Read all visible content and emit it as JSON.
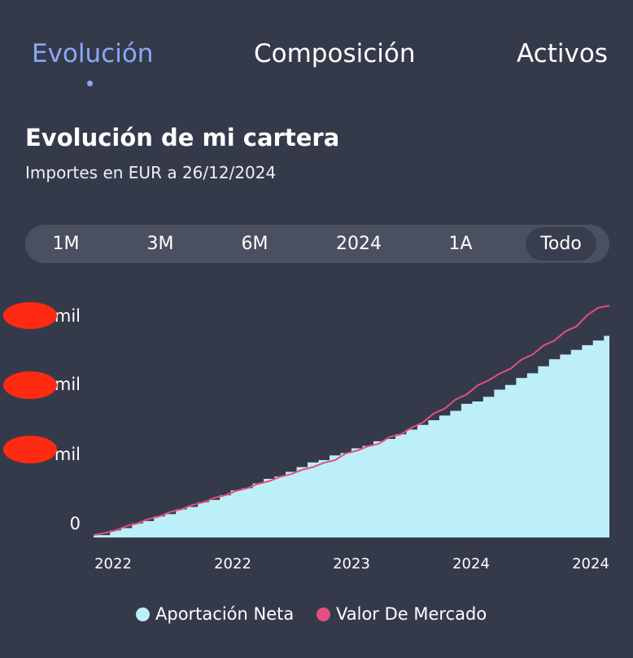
{
  "tabs": [
    {
      "label": "Evolución",
      "active": true
    },
    {
      "label": "Composición",
      "active": false
    },
    {
      "label": "Activos",
      "active": false
    }
  ],
  "header": {
    "title": "Evolución de mi cartera",
    "subtitle": "Importes en EUR a 26/12/2024"
  },
  "range_selector": {
    "options": [
      "1M",
      "3M",
      "6M",
      "2024",
      "1A",
      "Todo"
    ],
    "selected": "Todo"
  },
  "chart_data": {
    "type": "area",
    "x_tick_labels": [
      "2022",
      "2022",
      "2023",
      "2024",
      "2024"
    ],
    "y_tick_labels": [
      "mil",
      "mil",
      "mil",
      "0"
    ],
    "series": [
      {
        "name": "Aportación Neta",
        "kind": "area",
        "color": "#bdeff8",
        "values": [
          1,
          1,
          3,
          4,
          6,
          7,
          9,
          10,
          12,
          13,
          15,
          16,
          18,
          20,
          21,
          23,
          25,
          26,
          28,
          30,
          32,
          33,
          35,
          36,
          38,
          39,
          41,
          42,
          44,
          46,
          48,
          50,
          52,
          54,
          57,
          58,
          60,
          63,
          65,
          68,
          70,
          73,
          76,
          78,
          80,
          82,
          84,
          86
        ]
      },
      {
        "name": "Valor De Mercado",
        "kind": "line",
        "color": "#e44f7f",
        "values": [
          1,
          1,
          3,
          4,
          6,
          7,
          9,
          10,
          12,
          13,
          15,
          16,
          18,
          19,
          21,
          22,
          24,
          25,
          27,
          28,
          30,
          31,
          33,
          35,
          37,
          38,
          40,
          42,
          44,
          46,
          49,
          52,
          55,
          58,
          61,
          64,
          67,
          69,
          72,
          75,
          78,
          81,
          84,
          87,
          90,
          94,
          98,
          98
        ]
      }
    ]
  },
  "colors": {
    "background": "#353a4b",
    "accent": "#8aa9f5",
    "selector_bg": "#4b5061",
    "selected_bg": "#393e4f",
    "area_fill": "#bdeff8",
    "line": "#e44f7f",
    "redaction": "#ff2a12"
  }
}
